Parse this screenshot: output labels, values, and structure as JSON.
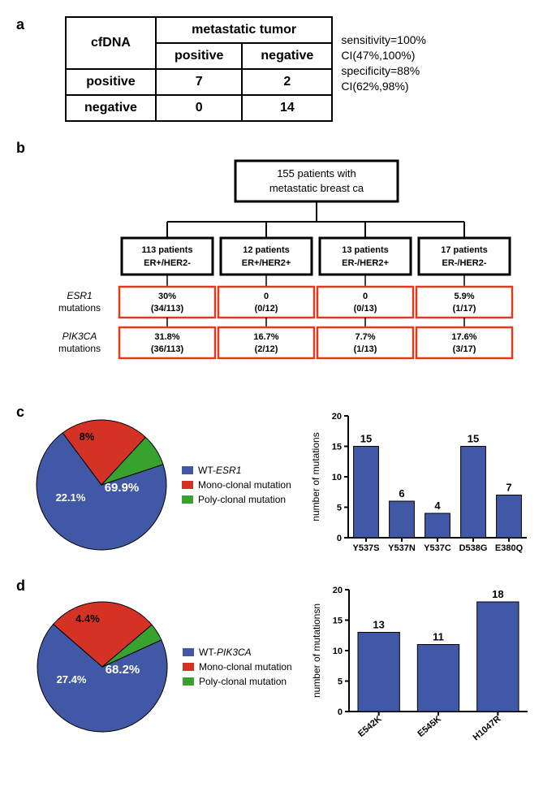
{
  "colors": {
    "blue": "#4158a6",
    "red": "#d43224",
    "green": "#37a22e",
    "black": "#000000",
    "orange_box": "#e23a1e",
    "axis": "#000000",
    "bg": "#ffffff"
  },
  "panel_a": {
    "label": "a",
    "top_header": "metastatic tumor",
    "row_header": "cfDNA",
    "col1": "positive",
    "col2": "negative",
    "row1_label": "positive",
    "row1_v1": "7",
    "row1_v2": "2",
    "row2_label": "negative",
    "row2_v1": "0",
    "row2_v2": "14",
    "stats_sens": "sensitivity=100%",
    "stats_sens_ci": "CI(47%,100%)",
    "stats_spec": "specificity=88%",
    "stats_spec_ci": "CI(62%,98%)"
  },
  "panel_b": {
    "label": "b",
    "root_l1": "155 patients with",
    "root_l2": "metastatic breast ca",
    "groups": [
      {
        "l1": "113 patients",
        "l2": "ER+/HER2-"
      },
      {
        "l1": "12 patients",
        "l2": "ER+/HER2+"
      },
      {
        "l1": "13 patients",
        "l2": "ER-/HER2+"
      },
      {
        "l1": "17 patients",
        "l2": "ER-/HER2-"
      }
    ],
    "row_labels": {
      "esr1_gene": "ESR1",
      "pik3ca_gene": "PIK3CA",
      "mut": "mutations"
    },
    "esr1": [
      {
        "pct": "30%",
        "frac": "(34/113)"
      },
      {
        "pct": "0",
        "frac": "(0/12)"
      },
      {
        "pct": "0",
        "frac": "(0/13)"
      },
      {
        "pct": "5.9%",
        "frac": "(1/17)"
      }
    ],
    "pik3ca": [
      {
        "pct": "31.8%",
        "frac": "(36/113)"
      },
      {
        "pct": "16.7%",
        "frac": "(2/12)"
      },
      {
        "pct": "7.7%",
        "frac": "(1/13)"
      },
      {
        "pct": "17.6%",
        "frac": "(3/17)"
      }
    ]
  },
  "panel_c": {
    "label": "c",
    "pie": {
      "slices": [
        {
          "name": "WT-ESR1",
          "pct": 69.9,
          "color": "#4158a6",
          "label": "69.9%"
        },
        {
          "name": "Mono-clonal mutation",
          "pct": 22.1,
          "color": "#d43224",
          "label": "22.1%"
        },
        {
          "name": "Poly-clonal mutation",
          "pct": 8.0,
          "color": "#37a22e",
          "label": "8%"
        }
      ],
      "legend": [
        "WT-ESR1",
        "Mono-clonal mutation",
        "Poly-clonal mutation"
      ]
    },
    "bar": {
      "ylabel": "number of mutations",
      "ylim": [
        0,
        20
      ],
      "ytick_step": 5,
      "categories": [
        "Y537S",
        "Y537N",
        "Y537C",
        "D538G",
        "E380Q"
      ],
      "values": [
        15,
        6,
        4,
        15,
        7
      ],
      "bar_color": "#4158a6"
    }
  },
  "panel_d": {
    "label": "d",
    "pie": {
      "slices": [
        {
          "name": "WT-PIK3CA",
          "pct": 68.2,
          "color": "#4158a6",
          "label": "68.2%"
        },
        {
          "name": "Mono-clonal mutation",
          "pct": 27.4,
          "color": "#d43224",
          "label": "27.4%"
        },
        {
          "name": "Poly-clonal mutation",
          "pct": 4.4,
          "color": "#37a22e",
          "label": "4.4%"
        }
      ],
      "legend": [
        "WT-PIK3CA",
        "Mono-clonal mutation",
        "Poly-clonal mutation"
      ]
    },
    "bar": {
      "ylabel": "number of mutationsn",
      "ylim": [
        0,
        20
      ],
      "ytick_step": 5,
      "categories": [
        "E542K",
        "E545K",
        "H1047R"
      ],
      "values": [
        13,
        11,
        18
      ],
      "bar_color": "#4158a6"
    }
  }
}
